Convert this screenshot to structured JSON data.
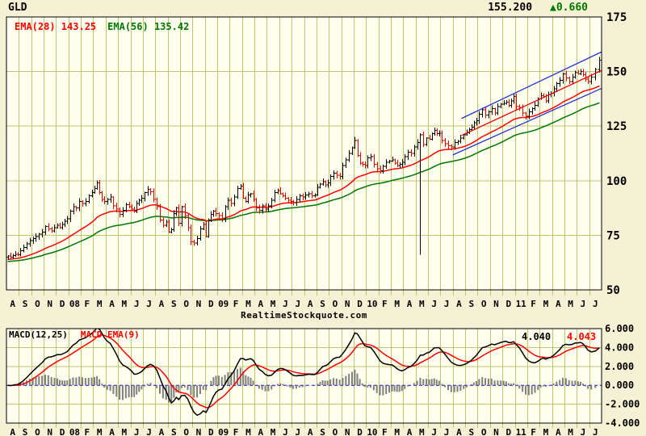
{
  "header": {
    "symbol": "GLD",
    "last_price": "155.200",
    "change": "▲0.660"
  },
  "price_panel": {
    "ema_fast_label": "EMA(28) 143.25",
    "ema_slow_label": "EMA(56) 135.42",
    "y_tick_labels": [
      "175",
      "150",
      "125",
      "100",
      "75",
      "50"
    ],
    "y_tick_values": [
      175,
      150,
      125,
      100,
      75,
      50
    ],
    "grid_values": [
      150,
      125,
      100,
      75
    ]
  },
  "watermark": "RealtimeStockquote.com",
  "macd_panel": {
    "indicator_label": "MACD(12,25)",
    "signal_label": "MACD EMA(9)",
    "macd_value": "4.040",
    "signal_value": "4.043",
    "y_tick_labels": [
      "6.000",
      "4.000",
      "2.000",
      "0.000",
      "-2.000",
      "-4.000"
    ],
    "y_tick_values": [
      6,
      4,
      2,
      0,
      -2,
      -4
    ],
    "grid_values": [
      4,
      2,
      -2,
      -4
    ]
  },
  "colors": {
    "background_outer": "#F5F1D4",
    "background_inner": "#FFFFEF",
    "grid": "#BFC46F",
    "border": "#000000",
    "text": "#000000",
    "up_bar": "#000000",
    "down_bar": "#E00000",
    "ema_fast": "#FF0000",
    "ema_slow": "#007700",
    "macd_line": "#000000",
    "signal_line": "#FF0000",
    "histogram": "#7F7F7F",
    "zero_line": "#0000CC",
    "trend_blue": "#2233CC",
    "trend_red": "#EE0000",
    "change_green": "#007700"
  },
  "chart_data": {
    "type": "ohlc",
    "title": "GLD weekly bars Aug 2007 - Jul 2011 with EMA(28)/EMA(56), trend channel, MACD(12,25) + EMA(9) signal and histogram",
    "x_axis": {
      "start": "Aug 2007",
      "end": "Jul 2011",
      "month_labels": [
        "A",
        "S",
        "O",
        "N",
        "D",
        "08",
        "F",
        "M",
        "A",
        "M",
        "J",
        "J",
        "A",
        "S",
        "O",
        "N",
        "D",
        "09",
        "F",
        "M",
        "A",
        "M",
        "J",
        "J",
        "A",
        "S",
        "O",
        "N",
        "D",
        "10",
        "F",
        "M",
        "A",
        "M",
        "J",
        "J",
        "A",
        "S",
        "O",
        "N",
        "D",
        "11",
        "F",
        "M",
        "A",
        "M",
        "J",
        "J"
      ],
      "weeks_per_month": [
        5,
        4,
        4,
        4,
        5,
        4,
        4,
        5,
        4,
        4,
        5,
        4,
        4,
        5,
        4,
        4,
        5,
        4,
        4,
        5,
        4,
        4,
        5,
        4,
        4,
        5,
        4,
        4,
        5,
        4,
        4,
        5,
        4,
        4,
        5,
        4,
        4,
        5,
        4,
        4,
        5,
        4,
        4,
        5,
        4,
        4,
        5,
        3
      ]
    },
    "price_axis": {
      "min": 50,
      "max": 175,
      "ticks": [
        175,
        150,
        125,
        100,
        75,
        50
      ]
    },
    "macd_axis": {
      "min": -4,
      "max": 6,
      "ticks": [
        6,
        4,
        2,
        0,
        -2,
        -4
      ]
    },
    "weekly_closes": [
      65.5,
      65.0,
      65.8,
      66.3,
      66.0,
      68.0,
      69.5,
      71.0,
      72.5,
      73.5,
      74.5,
      75.5,
      76.5,
      79.0,
      78.0,
      77.0,
      78.5,
      79.5,
      78.5,
      80.0,
      81.5,
      82.5,
      86.0,
      88.0,
      87.5,
      90.5,
      89.5,
      90.5,
      93.0,
      94.5,
      96.5,
      99.0,
      94.5,
      91.5,
      90.5,
      91.5,
      92.5,
      88.5,
      87.0,
      84.5,
      86.5,
      89.0,
      88.0,
      87.0,
      86.0,
      89.5,
      91.0,
      92.0,
      94.5,
      96.0,
      95.0,
      91.5,
      88.0,
      82.0,
      79.5,
      81.0,
      76.5,
      77.5,
      85.0,
      87.5,
      80.5,
      88.0,
      84.0,
      78.5,
      72.0,
      71.5,
      73.5,
      78.0,
      80.0,
      74.5,
      82.0,
      84.5,
      86.0,
      85.0,
      84.0,
      82.5,
      88.0,
      91.0,
      89.5,
      92.5,
      96.5,
      97.5,
      92.0,
      90.5,
      93.5,
      94.0,
      91.5,
      87.5,
      86.5,
      88.5,
      87.0,
      88.5,
      91.0,
      94.5,
      95.5,
      94.0,
      93.0,
      92.0,
      91.0,
      90.5,
      90.0,
      91.5,
      93.0,
      92.5,
      93.5,
      94.0,
      93.0,
      93.5,
      97.0,
      98.5,
      99.5,
      98.0,
      99.0,
      102.0,
      103.5,
      102.5,
      102.0,
      107.0,
      109.5,
      112.5,
      115.0,
      118.5,
      111.5,
      108.0,
      107.5,
      107.0,
      110.5,
      111.0,
      107.5,
      105.5,
      104.5,
      106.5,
      108.5,
      109.0,
      109.5,
      108.0,
      107.0,
      107.5,
      108.5,
      111.0,
      113.0,
      112.5,
      115.5,
      117.5,
      121.0,
      116.5,
      119.5,
      119.0,
      121.5,
      123.0,
      121.5,
      121.8,
      118.5,
      117.0,
      116.0,
      115.5,
      117.5,
      118.0,
      119.5,
      121.0,
      122.0,
      123.5,
      124.5,
      126.5,
      127.5,
      130.5,
      132.5,
      130.0,
      131.5,
      133.0,
      131.0,
      134.0,
      135.0,
      135.5,
      136.0,
      134.5,
      136.5,
      138.5,
      134.0,
      133.5,
      131.0,
      129.5,
      131.5,
      133.0,
      134.5,
      137.5,
      139.0,
      138.5,
      136.5,
      139.5,
      140.0,
      142.0,
      144.5,
      146.0,
      149.0,
      147.0,
      145.5,
      147.5,
      149.5,
      149.0,
      150.0,
      148.5,
      146.5,
      145.5,
      147.5,
      151.0,
      155.2
    ],
    "glitch_bar": {
      "index": 144,
      "low": 66.0
    },
    "indicators": {
      "ema_fast": 28,
      "ema_slow": 56,
      "macd_fast": 12,
      "macd_slow": 25,
      "macd_signal": 9,
      "ema_fast_last": 143.25,
      "ema_slow_last": 135.42,
      "macd_last": 4.04,
      "signal_last": 4.043
    },
    "trendlines": [
      {
        "color_key": "trend_blue",
        "from": {
          "month": 36.7,
          "price": 128.5
        },
        "to": {
          "month": 48.0,
          "price": 159.0
        }
      },
      {
        "color_key": "trend_red",
        "from": {
          "month": 36.7,
          "price": 120.7
        },
        "to": {
          "month": 48.0,
          "price": 150.5
        }
      },
      {
        "color_key": "trend_blue",
        "from": {
          "month": 36.0,
          "price": 111.8
        },
        "to": {
          "month": 48.0,
          "price": 142.3
        }
      }
    ],
    "legend_position": "top-left",
    "grid": true
  }
}
